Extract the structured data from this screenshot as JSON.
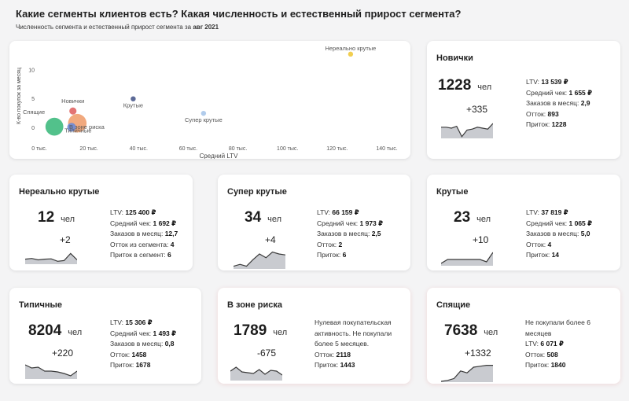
{
  "header": {
    "title": "Какие сегменты клиентов есть? Какая численность и естественный прирост сегмента?",
    "subtitle_prefix": "Численность сегмента и естественный прирост сегмента за",
    "subtitle_period": "авг 2021"
  },
  "chart_data": {
    "type": "scatter",
    "xlabel": "Средний LTV",
    "ylabel": "К-во покупок за месяц",
    "xlim": [
      0,
      140000
    ],
    "ylim": [
      -1,
      12
    ],
    "x_ticks": [
      "0 тыс.",
      "20 тыс.",
      "40 тыс.",
      "60 тыс.",
      "80 тыс.",
      "100 тыс.",
      "120 тыс.",
      "140 тыс."
    ],
    "y_ticks": [
      "0",
      "5",
      "10"
    ],
    "points": [
      {
        "label": "Нереально крутые",
        "x": 125400,
        "y": 12.7,
        "size": 12,
        "color": "#f0c93d"
      },
      {
        "label": "Крутые",
        "x": 37819,
        "y": 5.0,
        "size": 23,
        "color": "#4a5a8c"
      },
      {
        "label": "Супер крутые",
        "x": 66159,
        "y": 2.5,
        "size": 34,
        "color": "#a9c6ea"
      },
      {
        "label": "Новички",
        "x": 13539,
        "y": 2.9,
        "size": 1228,
        "color": "#e06565"
      },
      {
        "label": "Спящие",
        "x": 6071,
        "y": 0.2,
        "size": 7638,
        "color": "#3fba7e"
      },
      {
        "label": "Типичные",
        "x": 15306,
        "y": 0.8,
        "size": 8204,
        "color": "#f0a070"
      },
      {
        "label": "В зоне риска",
        "x": 13000,
        "y": 0.1,
        "size": 1789,
        "color": "#6a8ad8"
      }
    ]
  },
  "unit": "чел",
  "cards": {
    "novichki": {
      "title": "Новички",
      "count": "1228",
      "delta": "+335",
      "spark": [
        0.55,
        0.55,
        0.5,
        0.6,
        0.05,
        0.4,
        0.45,
        0.55,
        0.5,
        0.45,
        0.75
      ],
      "m1": "LTV: ",
      "v1": "13 539 ₽",
      "m2": "Средний чек: ",
      "v2": "1 655 ₽",
      "m3": "Заказов в месяц: ",
      "v3": "2,9",
      "m4": "Отток: ",
      "v4": "893",
      "m5": "Приток: ",
      "v5": "1228"
    },
    "nerealno": {
      "title": "Нереально крутые",
      "count": "12",
      "delta": "+2",
      "spark": [
        0.3,
        0.35,
        0.25,
        0.3,
        0.32,
        0.15,
        0.2,
        0.7,
        0.25
      ],
      "m1": "LTV: ",
      "v1": "125 400 ₽",
      "m2": "Средний чек: ",
      "v2": "1 692 ₽",
      "m3": "Заказов в месяц: ",
      "v3": "12,7",
      "m4": "Отток из сегмента: ",
      "v4": "4",
      "m5": "Приток в сегмент: ",
      "v5": "6"
    },
    "super": {
      "title": "Супер крутые",
      "count": "34",
      "delta": "+4",
      "spark": [
        0.1,
        0.2,
        0.1,
        0.45,
        0.75,
        0.55,
        0.85,
        0.75,
        0.7
      ],
      "m1": "LTV: ",
      "v1": "66 159 ₽",
      "m2": "Средний чек: ",
      "v2": "1 973 ₽",
      "m3": "Заказов в месяц: ",
      "v3": "2,5",
      "m4": "Отток: ",
      "v4": "2",
      "m5": "Приток: ",
      "v5": "6"
    },
    "krutye": {
      "title": "Крутые",
      "count": "23",
      "delta": "+10",
      "spark": [
        0.1,
        0.35,
        0.35,
        0.35,
        0.35,
        0.35,
        0.35,
        0.2,
        0.8
      ],
      "m1": "LTV: ",
      "v1": "37 819 ₽",
      "m2": "Средний чек: ",
      "v2": "1 065 ₽",
      "m3": "Заказов в месяц: ",
      "v3": "5,0",
      "m4": "Отток: ",
      "v4": "4",
      "m5": "Приток: ",
      "v5": "14"
    },
    "tipichnye": {
      "title": "Типичные",
      "count": "8204",
      "delta": "+220",
      "spark": [
        0.85,
        0.65,
        0.7,
        0.45,
        0.45,
        0.4,
        0.3,
        0.15,
        0.45
      ],
      "m1": "LTV: ",
      "v1": "15 306 ₽",
      "m2": "Средний чек: ",
      "v2": "1 493 ₽",
      "m3": "Заказов в месяц: ",
      "v3": "0,8",
      "m4": "Отток: ",
      "v4": "1458",
      "m5": "Приток: ",
      "v5": "1678"
    },
    "risk": {
      "title": "В зоне риска",
      "count": "1789",
      "delta": "-675",
      "spark": [
        0.55,
        0.8,
        0.5,
        0.45,
        0.4,
        0.65,
        0.35,
        0.6,
        0.55,
        0.3
      ],
      "desc": "Нулевая покупательская активность. Не покупали более 5 месяцев.",
      "m4": "Отток: ",
      "v4": "2118",
      "m5": "Приток: ",
      "v5": "1443"
    },
    "spyashchie": {
      "title": "Спящие",
      "count": "7638",
      "delta": "+1332",
      "spark": [
        0.0,
        0.05,
        0.15,
        0.55,
        0.45,
        0.75,
        0.8,
        0.85,
        0.85
      ],
      "desc": "Не покупали более 6 месяцев",
      "m1": "LTV: ",
      "v1": "6 071 ₽",
      "m4": "Отток: ",
      "v4": "508",
      "m5": "Приток: ",
      "v5": "1840"
    }
  }
}
